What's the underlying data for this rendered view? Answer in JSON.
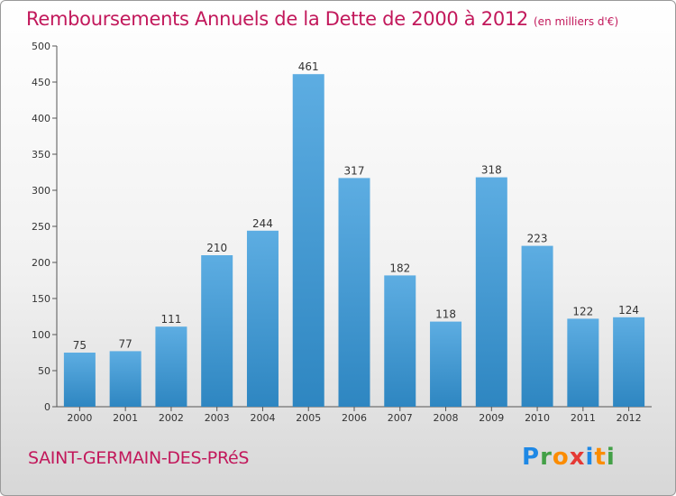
{
  "title": "Remboursements Annuels de la Dette de 2000 à 2012",
  "unit_note": "(en milliers d'€)",
  "city": "SAINT-GERMAIN-DES-PRéS",
  "brand": {
    "letters": [
      "P",
      "r",
      "o",
      "x",
      "i",
      "t",
      "i"
    ],
    "colors": [
      "#1e88e5",
      "#43a047",
      "#fb8c00",
      "#e53935",
      "#1e88e5",
      "#fb8c00",
      "#43a047"
    ]
  },
  "colors": {
    "title": "#c2185b",
    "bar_top": "#5dade2",
    "bar_bottom": "#2e86c1",
    "axis": "#555555"
  },
  "chart_data": {
    "type": "bar",
    "categories": [
      "2000",
      "2001",
      "2002",
      "2003",
      "2004",
      "2005",
      "2006",
      "2007",
      "2008",
      "2009",
      "2010",
      "2011",
      "2012"
    ],
    "values": [
      75,
      77,
      111,
      210,
      244,
      461,
      317,
      182,
      118,
      318,
      223,
      122,
      124
    ],
    "title": "Remboursements Annuels de la Dette de 2000 à 2012",
    "xlabel": "",
    "ylabel": "",
    "ylim": [
      0,
      500
    ],
    "yticks": [
      0,
      50,
      100,
      150,
      200,
      250,
      300,
      350,
      400,
      450,
      500
    ],
    "grid": false,
    "data_labels": true
  }
}
